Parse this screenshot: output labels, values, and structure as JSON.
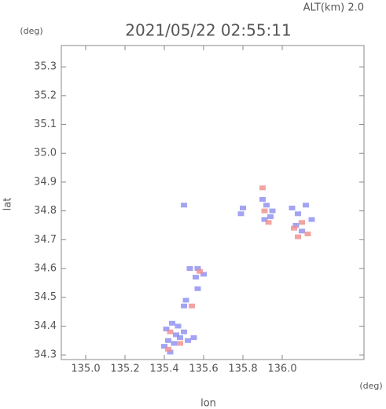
{
  "chart_data": {
    "type": "scatter",
    "title": "2021/05/22 02:55:11",
    "altitude_label": "ALT(km) 2.0",
    "y_unit": "(deg)",
    "x_unit": "(deg)",
    "xlabel": "lon",
    "ylabel": "lat",
    "xlim": [
      134.876,
      136.416
    ],
    "ylim": [
      34.284,
      35.374
    ],
    "xticks": [
      {
        "value": 135,
        "label": "135.0"
      },
      135.2,
      135.4,
      135.6,
      135.8,
      {
        "value": 136,
        "label": "136.0"
      }
    ],
    "yticks": [
      34.3,
      34.4,
      34.5,
      34.6,
      34.7,
      34.8,
      34.9,
      {
        "value": 35,
        "label": "35.0"
      },
      35.1,
      35.2,
      35.3
    ],
    "grid": false,
    "series": [
      {
        "color": "#8c8cf0",
        "x": [
          135.4,
          135.42,
          135.45,
          135.48,
          135.41,
          135.44,
          135.47,
          135.43,
          135.46,
          135.5,
          135.52,
          135.55,
          135.57,
          135.6,
          135.56,
          135.53,
          135.51,
          135.5,
          135.8,
          135.79,
          135.9,
          135.92,
          135.95,
          135.91,
          135.94,
          136.05,
          136.08,
          136.12,
          136.15,
          136.1,
          136.07,
          135.5,
          135.57
        ],
        "y": [
          34.33,
          34.35,
          34.34,
          34.36,
          34.39,
          34.41,
          34.4,
          34.31,
          34.37,
          34.38,
          34.35,
          34.36,
          34.6,
          34.58,
          34.57,
          34.6,
          34.49,
          34.47,
          34.81,
          34.79,
          34.84,
          34.82,
          34.8,
          34.77,
          34.78,
          34.81,
          34.79,
          34.82,
          34.77,
          34.73,
          34.75,
          34.82,
          34.53
        ]
      },
      {
        "color": "#f08c8c",
        "x": [
          135.43,
          135.48,
          135.42,
          135.58,
          135.54,
          135.91,
          135.93,
          136.06,
          136.1,
          136.13,
          136.08,
          135.9
        ],
        "y": [
          34.38,
          34.34,
          34.32,
          34.59,
          34.47,
          34.8,
          34.76,
          34.74,
          34.76,
          34.72,
          34.71,
          34.88
        ]
      }
    ]
  }
}
